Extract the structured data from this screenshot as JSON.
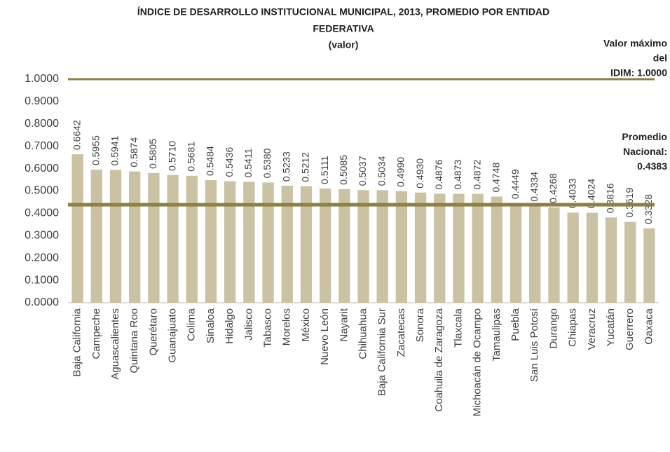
{
  "chart_data": {
    "type": "bar",
    "title_lines": [
      "ÍNDICE DE DESARROLLO INSTITUCIONAL MUNICIPAL, 2013, PROMEDIO POR ENTIDAD",
      "FEDERATIVA"
    ],
    "subtitle": "(valor)",
    "categories": [
      "Baja California",
      "Campeche",
      "Aguascalientes",
      "Quintana Roo",
      "Querétaro",
      "Guanajuato",
      "Colima",
      "Sinaloa",
      "Hidalgo",
      "Jalisco",
      "Tabasco",
      "Morelos",
      "México",
      "Nuevo León",
      "Nayarit",
      "Chihuahua",
      "Baja California Sur",
      "Zacatecas",
      "Sonora",
      "Coahuila de Zaragoza",
      "Tlaxcala",
      "Michoacán de Ocampo",
      "Tamaulipas",
      "Puebla",
      "San Luis Potosí",
      "Durango",
      "Chiapas",
      "Veracruz",
      "Yucatán",
      "Guerrero",
      "Oaxaca"
    ],
    "values": [
      0.6642,
      0.5955,
      0.5941,
      0.5874,
      0.5805,
      0.571,
      0.5681,
      0.5484,
      0.5436,
      0.5411,
      0.538,
      0.5233,
      0.5212,
      0.5111,
      0.5085,
      0.5037,
      0.5034,
      0.499,
      0.493,
      0.4876,
      0.4873,
      0.4872,
      0.4748,
      0.4449,
      0.4334,
      0.4268,
      0.4033,
      0.4024,
      0.3816,
      0.3619,
      0.3328
    ],
    "value_labels": [
      "0.6642",
      "0.5955",
      "0.5941",
      "0.5874",
      "0.5805",
      "0.5710",
      "0.5681",
      "0.5484",
      "0.5436",
      "0.5411",
      "0.5380",
      "0.5233",
      "0.5212",
      "0.5111",
      "0.5085",
      "0.5037",
      "0.5034",
      "0.4990",
      "0.4930",
      "0.4876",
      "0.4873",
      "0.4872",
      "0.4748",
      "0.4449",
      "0.4334",
      "0.4268",
      "0.4033",
      "0.4024",
      "0.3816",
      "0.3619",
      "0.3328"
    ],
    "color": "#cbc2a4",
    "ylim": [
      0,
      1
    ],
    "yticks": [
      {
        "value": 0,
        "label": "0.0000"
      },
      {
        "value": 0.1,
        "label": "0.1000"
      },
      {
        "value": 0.2,
        "label": "0.2000"
      },
      {
        "value": 0.3,
        "label": "0.3000"
      },
      {
        "value": 0.4,
        "label": "0.4000"
      },
      {
        "value": 0.5,
        "label": "0.5000"
      },
      {
        "value": 0.6,
        "label": "0.6000"
      },
      {
        "value": 0.7,
        "label": "0.7000"
      },
      {
        "value": 0.8,
        "label": "0.8000"
      },
      {
        "value": 0.9,
        "label": "0.9000"
      },
      {
        "value": 1,
        "label": "1.0000"
      }
    ],
    "reference_lines": [
      {
        "value": 1,
        "label_lines": [
          "Valor máximo",
          "del",
          "IDIM: 1.0000"
        ],
        "color": "#8c8043"
      },
      {
        "value": 0.4383,
        "label_lines": [
          "Promedio",
          "Nacional:",
          "0.4383"
        ],
        "color": "#8c8043"
      }
    ]
  }
}
